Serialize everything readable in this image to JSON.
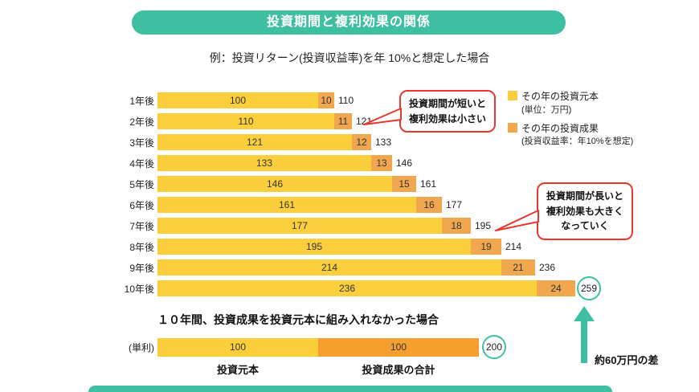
{
  "title": "投資期間と複利効果の関係",
  "subtitle": "例：投資リターン(投資収益率)を年 10%と想定した場合",
  "legend": {
    "principal_label": "その年の投資元本",
    "principal_sub": "(単位：万円)",
    "gain_label": "その年の投資成果",
    "gain_sub": "(投資収益率：年10%を想定)"
  },
  "callouts": {
    "short": "投資期間が短いと\n複利効果は小さい",
    "long": "投資期間が長いと\n複利効果も大きく\nなっていく"
  },
  "simple_section": {
    "heading": "１０年間、投資成果を投資元本に組み入れなかった場合",
    "row_label": "(単利)",
    "principal": 100,
    "gain": 100,
    "total": 200,
    "principal_caption": "投資元本",
    "gain_caption": "投資成果の合計",
    "diff_label": "約60万円の差"
  },
  "chart_data": {
    "type": "bar",
    "orientation": "horizontal",
    "stacked": true,
    "unit": "万円",
    "categories": [
      "1年後",
      "2年後",
      "3年後",
      "4年後",
      "5年後",
      "6年後",
      "7年後",
      "8年後",
      "9年後",
      "10年後"
    ],
    "series": [
      {
        "name": "その年の投資元本",
        "values": [
          100,
          110,
          121,
          133,
          146,
          161,
          177,
          195,
          214,
          236
        ],
        "color": "#FBCF3B"
      },
      {
        "name": "その年の投資成果",
        "values": [
          10,
          11,
          12,
          13,
          15,
          16,
          18,
          19,
          21,
          24
        ],
        "color": "#F1A74E"
      }
    ],
    "totals": [
      110,
      121,
      133,
      146,
      161,
      177,
      195,
      214,
      236,
      259
    ],
    "highlight_total_index": 9,
    "legend_position": "top-right",
    "grid": false
  },
  "colors": {
    "teal": "#3FBFA2",
    "yellow": "#FBCF3B",
    "gain": "#F1A74E",
    "gain_strong": "#F5A02E",
    "red": "#E8382D"
  }
}
